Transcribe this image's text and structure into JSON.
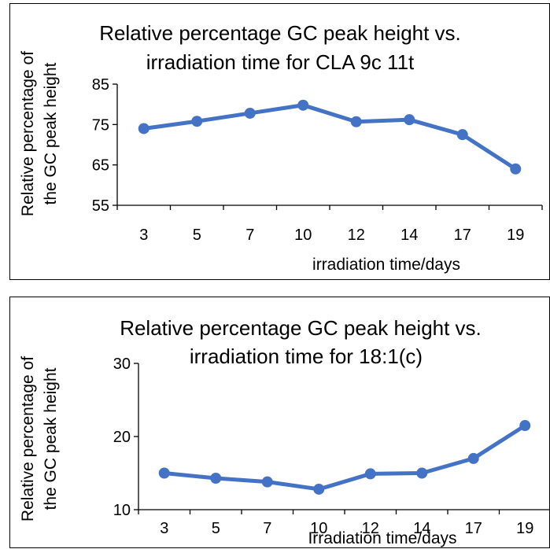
{
  "chart_data": [
    {
      "type": "line",
      "title_lines": [
        "Relative percentage GC peak height vs.",
        "irradiation time for CLA 9c 11t"
      ],
      "xlabel": "irradiation time/days",
      "ylabel_lines": [
        "Relative percentage of",
        "the GC peak height"
      ],
      "categories": [
        "3",
        "5",
        "7",
        "10",
        "12",
        "14",
        "17",
        "19"
      ],
      "values": [
        74,
        75.8,
        77.8,
        79.8,
        75.7,
        76.2,
        72.5,
        64
      ],
      "ylim": [
        55,
        85
      ],
      "yticks": [
        "55",
        "65",
        "75",
        "85"
      ],
      "series_color": "#4472C4",
      "grid": false,
      "legend": "none"
    },
    {
      "type": "line",
      "title_lines": [
        "Relative percentage GC peak height vs.",
        "irradiation time for 18:1(c)"
      ],
      "xlabel": "Irradiation time/days",
      "ylabel_lines": [
        "Relative percentage of",
        "the GC peak height"
      ],
      "categories": [
        "3",
        "5",
        "7",
        "10",
        "12",
        "14",
        "17",
        "19"
      ],
      "values": [
        15,
        14.3,
        13.8,
        12.8,
        14.9,
        15,
        17,
        21.5
      ],
      "ylim": [
        10,
        30
      ],
      "yticks": [
        "10",
        "20",
        "30"
      ],
      "series_color": "#4472C4",
      "grid": false,
      "legend": "none"
    }
  ]
}
